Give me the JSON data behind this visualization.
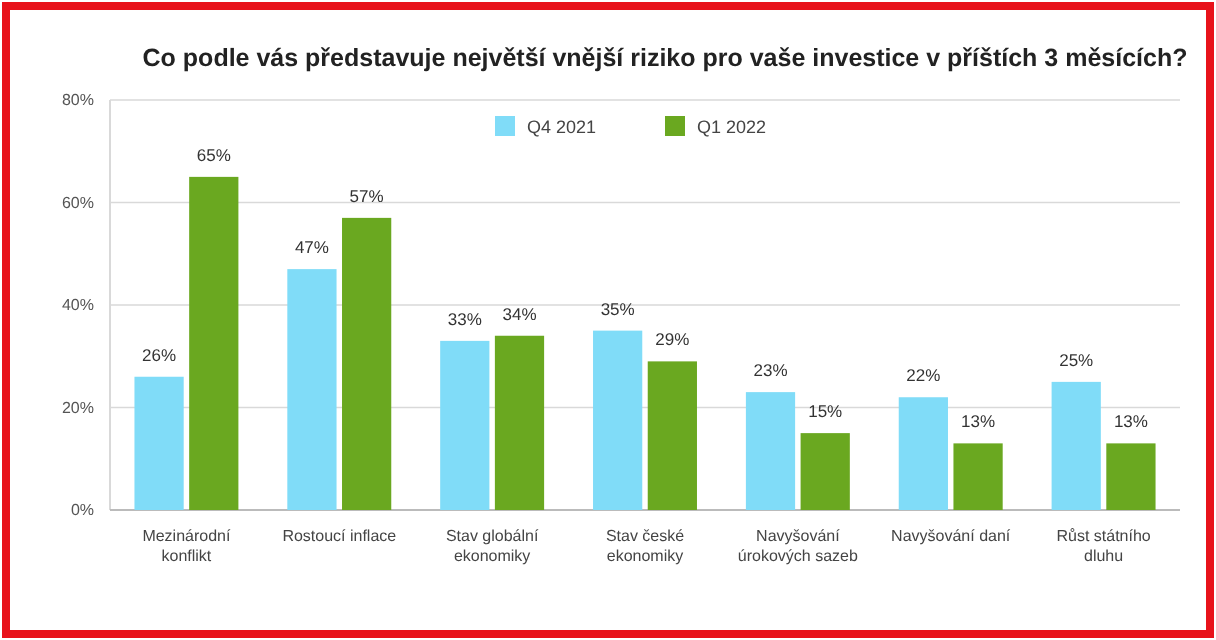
{
  "chart_data": {
    "type": "bar",
    "title": "Co podle vás představuje největší vnější riziko pro vaše investice v příštích 3 měsících?",
    "categories": [
      "Mezinárodní konflikt",
      "Rostoucí inflace",
      "Stav globální ekonomiky",
      "Stav české ekonomiky",
      "Navyšování úrokových sazeb",
      "Navyšování daní",
      "Růst státního dluhu"
    ],
    "series": [
      {
        "name": "Q4 2021",
        "color": "#80dcf8",
        "values": [
          26,
          47,
          33,
          35,
          23,
          22,
          25
        ],
        "value_labels": [
          "26%",
          "47%",
          "33%",
          "35%",
          "23%",
          "22%",
          "25%"
        ]
      },
      {
        "name": "Q1 2022",
        "color": "#6aa820",
        "values": [
          65,
          57,
          34,
          29,
          15,
          13,
          13
        ],
        "value_labels": [
          "65%",
          "57%",
          "34%",
          "29%",
          "15%",
          "13%",
          "13%"
        ]
      }
    ],
    "ylim": [
      0,
      80
    ],
    "yticks": [
      {
        "value": 0,
        "label": "0%"
      },
      {
        "value": 20,
        "label": "20%"
      },
      {
        "value": 40,
        "label": "40%"
      },
      {
        "value": 60,
        "label": "60%"
      },
      {
        "value": 80,
        "label": "80%"
      }
    ],
    "grid": "y",
    "legend": "top"
  }
}
